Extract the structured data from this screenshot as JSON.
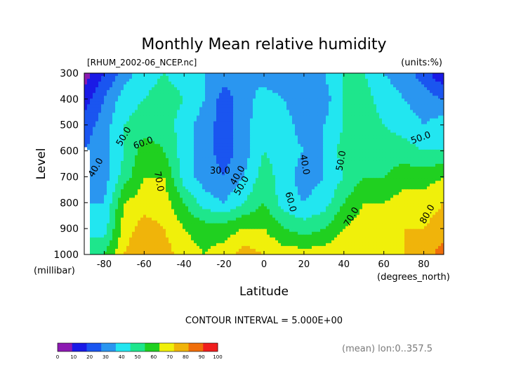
{
  "chart_data": {
    "type": "heatmap",
    "title": "Monthly Mean relative humidity",
    "source_file": "[RHUM_2002-06_NCEP.nc]",
    "units": "(units:%)",
    "xlabel": "Latitude",
    "x_units": "(degrees_north)",
    "ylabel": "Level",
    "y_units": "(millibar)",
    "xlim": [
      -90,
      90
    ],
    "ylim": [
      1000,
      300
    ],
    "x_ticks": [
      "-80",
      "-60",
      "-40",
      "-20",
      "0",
      "20",
      "40",
      "60",
      "80"
    ],
    "x_tick_values": [
      -80,
      -60,
      -40,
      -20,
      0,
      20,
      40,
      60,
      80
    ],
    "y_ticks": [
      "300",
      "400",
      "500",
      "600",
      "700",
      "800",
      "900",
      "1000"
    ],
    "y_tick_values": [
      300,
      400,
      500,
      600,
      700,
      800,
      900,
      1000
    ],
    "contour_interval_text": "CONTOUR INTERVAL = 5.000E+00",
    "averaging_note": "(mean) lon:0..357.5",
    "levels": [
      1000,
      900,
      800,
      700,
      600,
      500,
      400,
      300
    ],
    "latitudes": [
      -90,
      -80,
      -70,
      -60,
      -50,
      -40,
      -30,
      -20,
      -10,
      0,
      10,
      20,
      30,
      40,
      50,
      60,
      70,
      80,
      90
    ],
    "values": [
      [
        null,
        60,
        80,
        90,
        85,
        75,
        70,
        75,
        85,
        80,
        75,
        75,
        75,
        80,
        80,
        80,
        80,
        85,
        95
      ],
      [
        null,
        45,
        75,
        85,
        80,
        70,
        65,
        65,
        70,
        70,
        60,
        55,
        60,
        70,
        75,
        75,
        80,
        80,
        85
      ],
      [
        null,
        40,
        70,
        75,
        75,
        60,
        45,
        40,
        50,
        60,
        45,
        40,
        45,
        60,
        70,
        70,
        75,
        75,
        80
      ],
      [
        null,
        35,
        55,
        70,
        70,
        45,
        35,
        30,
        40,
        55,
        45,
        35,
        40,
        50,
        60,
        60,
        65,
        65,
        70
      ],
      [
        null,
        35,
        50,
        65,
        60,
        45,
        35,
        25,
        35,
        50,
        45,
        40,
        40,
        55,
        60,
        55,
        55,
        50,
        50
      ],
      [
        25,
        35,
        50,
        55,
        55,
        45,
        35,
        25,
        35,
        50,
        45,
        35,
        40,
        50,
        55,
        50,
        45,
        40,
        45
      ],
      [
        15,
        30,
        45,
        50,
        55,
        50,
        40,
        25,
        35,
        45,
        40,
        30,
        35,
        50,
        55,
        45,
        40,
        35,
        30
      ],
      [
        5,
        20,
        35,
        45,
        50,
        45,
        40,
        35,
        40,
        35,
        30,
        35,
        40,
        50,
        50,
        40,
        35,
        25,
        10
      ]
    ],
    "contour_labels": [
      "50.0",
      "60.0",
      "40.0",
      "70.0",
      "30.0",
      "40.0",
      "50.0",
      "40.0",
      "50.0",
      "60.0",
      "70.0",
      "50.0",
      "80.0"
    ],
    "colorbar": {
      "tick_labels": [
        "0",
        "10",
        "20",
        "30",
        "40",
        "50",
        "60",
        "70",
        "80",
        "90",
        "100"
      ],
      "colors": [
        "#8c1ab2",
        "#1a1ae6",
        "#1a55f0",
        "#2a96f0",
        "#22e6f0",
        "#1ee68c",
        "#20d020",
        "#f0f00a",
        "#f0b40a",
        "#f06e0a",
        "#f01e1e"
      ]
    }
  }
}
